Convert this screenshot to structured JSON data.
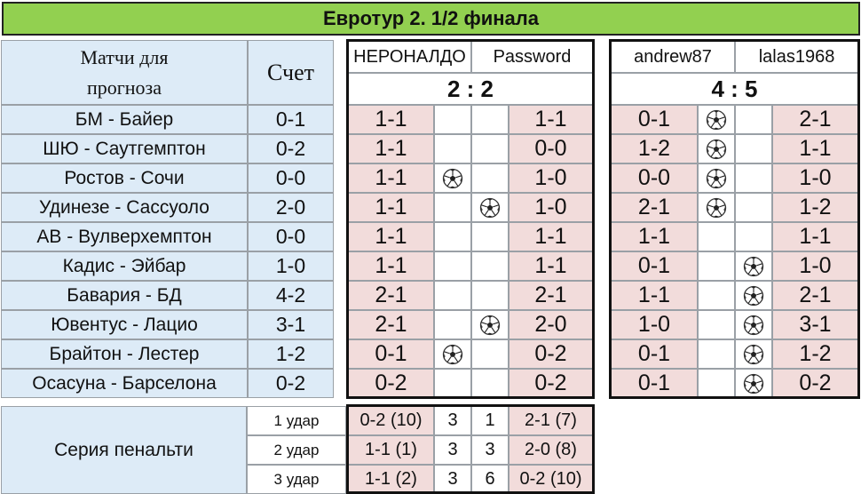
{
  "title": "Евротур 2. 1/2 финала",
  "header": {
    "matches_label": "Матчи для прогноза",
    "score_label": "Счет"
  },
  "pairs": [
    {
      "player1": "НЕРОНАЛДО",
      "player2": "Password",
      "total": "2 : 2"
    },
    {
      "player1": "andrew87",
      "player2": "lalas1968",
      "total": "4 : 5"
    }
  ],
  "matches": [
    {
      "name": "БМ - Байер",
      "score": "0-1",
      "p1": "1-1",
      "p2": "1-1",
      "p3": "0-1",
      "p4": "2-1",
      "ball1": "",
      "ball2": "left"
    },
    {
      "name": "ШЮ - Саутгемптон",
      "score": "0-2",
      "p1": "1-1",
      "p2": "0-0",
      "p3": "1-2",
      "p4": "1-1",
      "ball1": "",
      "ball2": "left"
    },
    {
      "name": "Ростов - Сочи",
      "score": "0-0",
      "p1": "1-1",
      "p2": "1-0",
      "p3": "0-0",
      "p4": "1-0",
      "ball1": "left",
      "ball2": "left"
    },
    {
      "name": "Удинезе - Сассуоло",
      "score": "2-0",
      "p1": "1-1",
      "p2": "1-0",
      "p3": "2-1",
      "p4": "1-2",
      "ball1": "right",
      "ball2": "left"
    },
    {
      "name": "АВ - Вулверхемптон",
      "score": "0-0",
      "p1": "1-1",
      "p2": "1-1",
      "p3": "1-1",
      "p4": "1-1",
      "ball1": "",
      "ball2": ""
    },
    {
      "name": "Кадис - Эйбар",
      "score": "1-0",
      "p1": "1-1",
      "p2": "1-1",
      "p3": "0-1",
      "p4": "1-0",
      "ball1": "",
      "ball2": "right"
    },
    {
      "name": "Бавария - БД",
      "score": "4-2",
      "p1": "2-1",
      "p2": "2-1",
      "p3": "1-1",
      "p4": "2-1",
      "ball1": "",
      "ball2": "right"
    },
    {
      "name": "Ювентус - Лацио",
      "score": "3-1",
      "p1": "2-1",
      "p2": "2-0",
      "p3": "1-0",
      "p4": "3-1",
      "ball1": "right",
      "ball2": "right"
    },
    {
      "name": "Брайтон - Лестер",
      "score": "1-2",
      "p1": "0-1",
      "p2": "0-2",
      "p3": "0-1",
      "p4": "1-2",
      "ball1": "left",
      "ball2": "right"
    },
    {
      "name": "Осасуна - Барселона",
      "score": "0-2",
      "p1": "0-2",
      "p2": "0-2",
      "p3": "0-1",
      "p4": "0-2",
      "ball1": "",
      "ball2": "right"
    }
  ],
  "penalty": {
    "label": "Серия пенальти",
    "rows": [
      {
        "label": "1 удар",
        "p1": "0-2 (10)",
        "c1": "3",
        "c2": "1",
        "p2": "2-1 (7)"
      },
      {
        "label": "2 удар",
        "p1": "1-1 (1)",
        "c1": "3",
        "c2": "3",
        "p2": "2-0 (8)"
      },
      {
        "label": "3 удар",
        "p1": "1-1 (2)",
        "c1": "3",
        "c2": "6",
        "p2": "0-2 (10)"
      }
    ]
  },
  "icons": {
    "ball": "soccer-ball-icon"
  },
  "colors": {
    "header_bg": "#92d050",
    "label_bg": "#ddebf7",
    "prediction_bg": "#f2dcdb"
  }
}
